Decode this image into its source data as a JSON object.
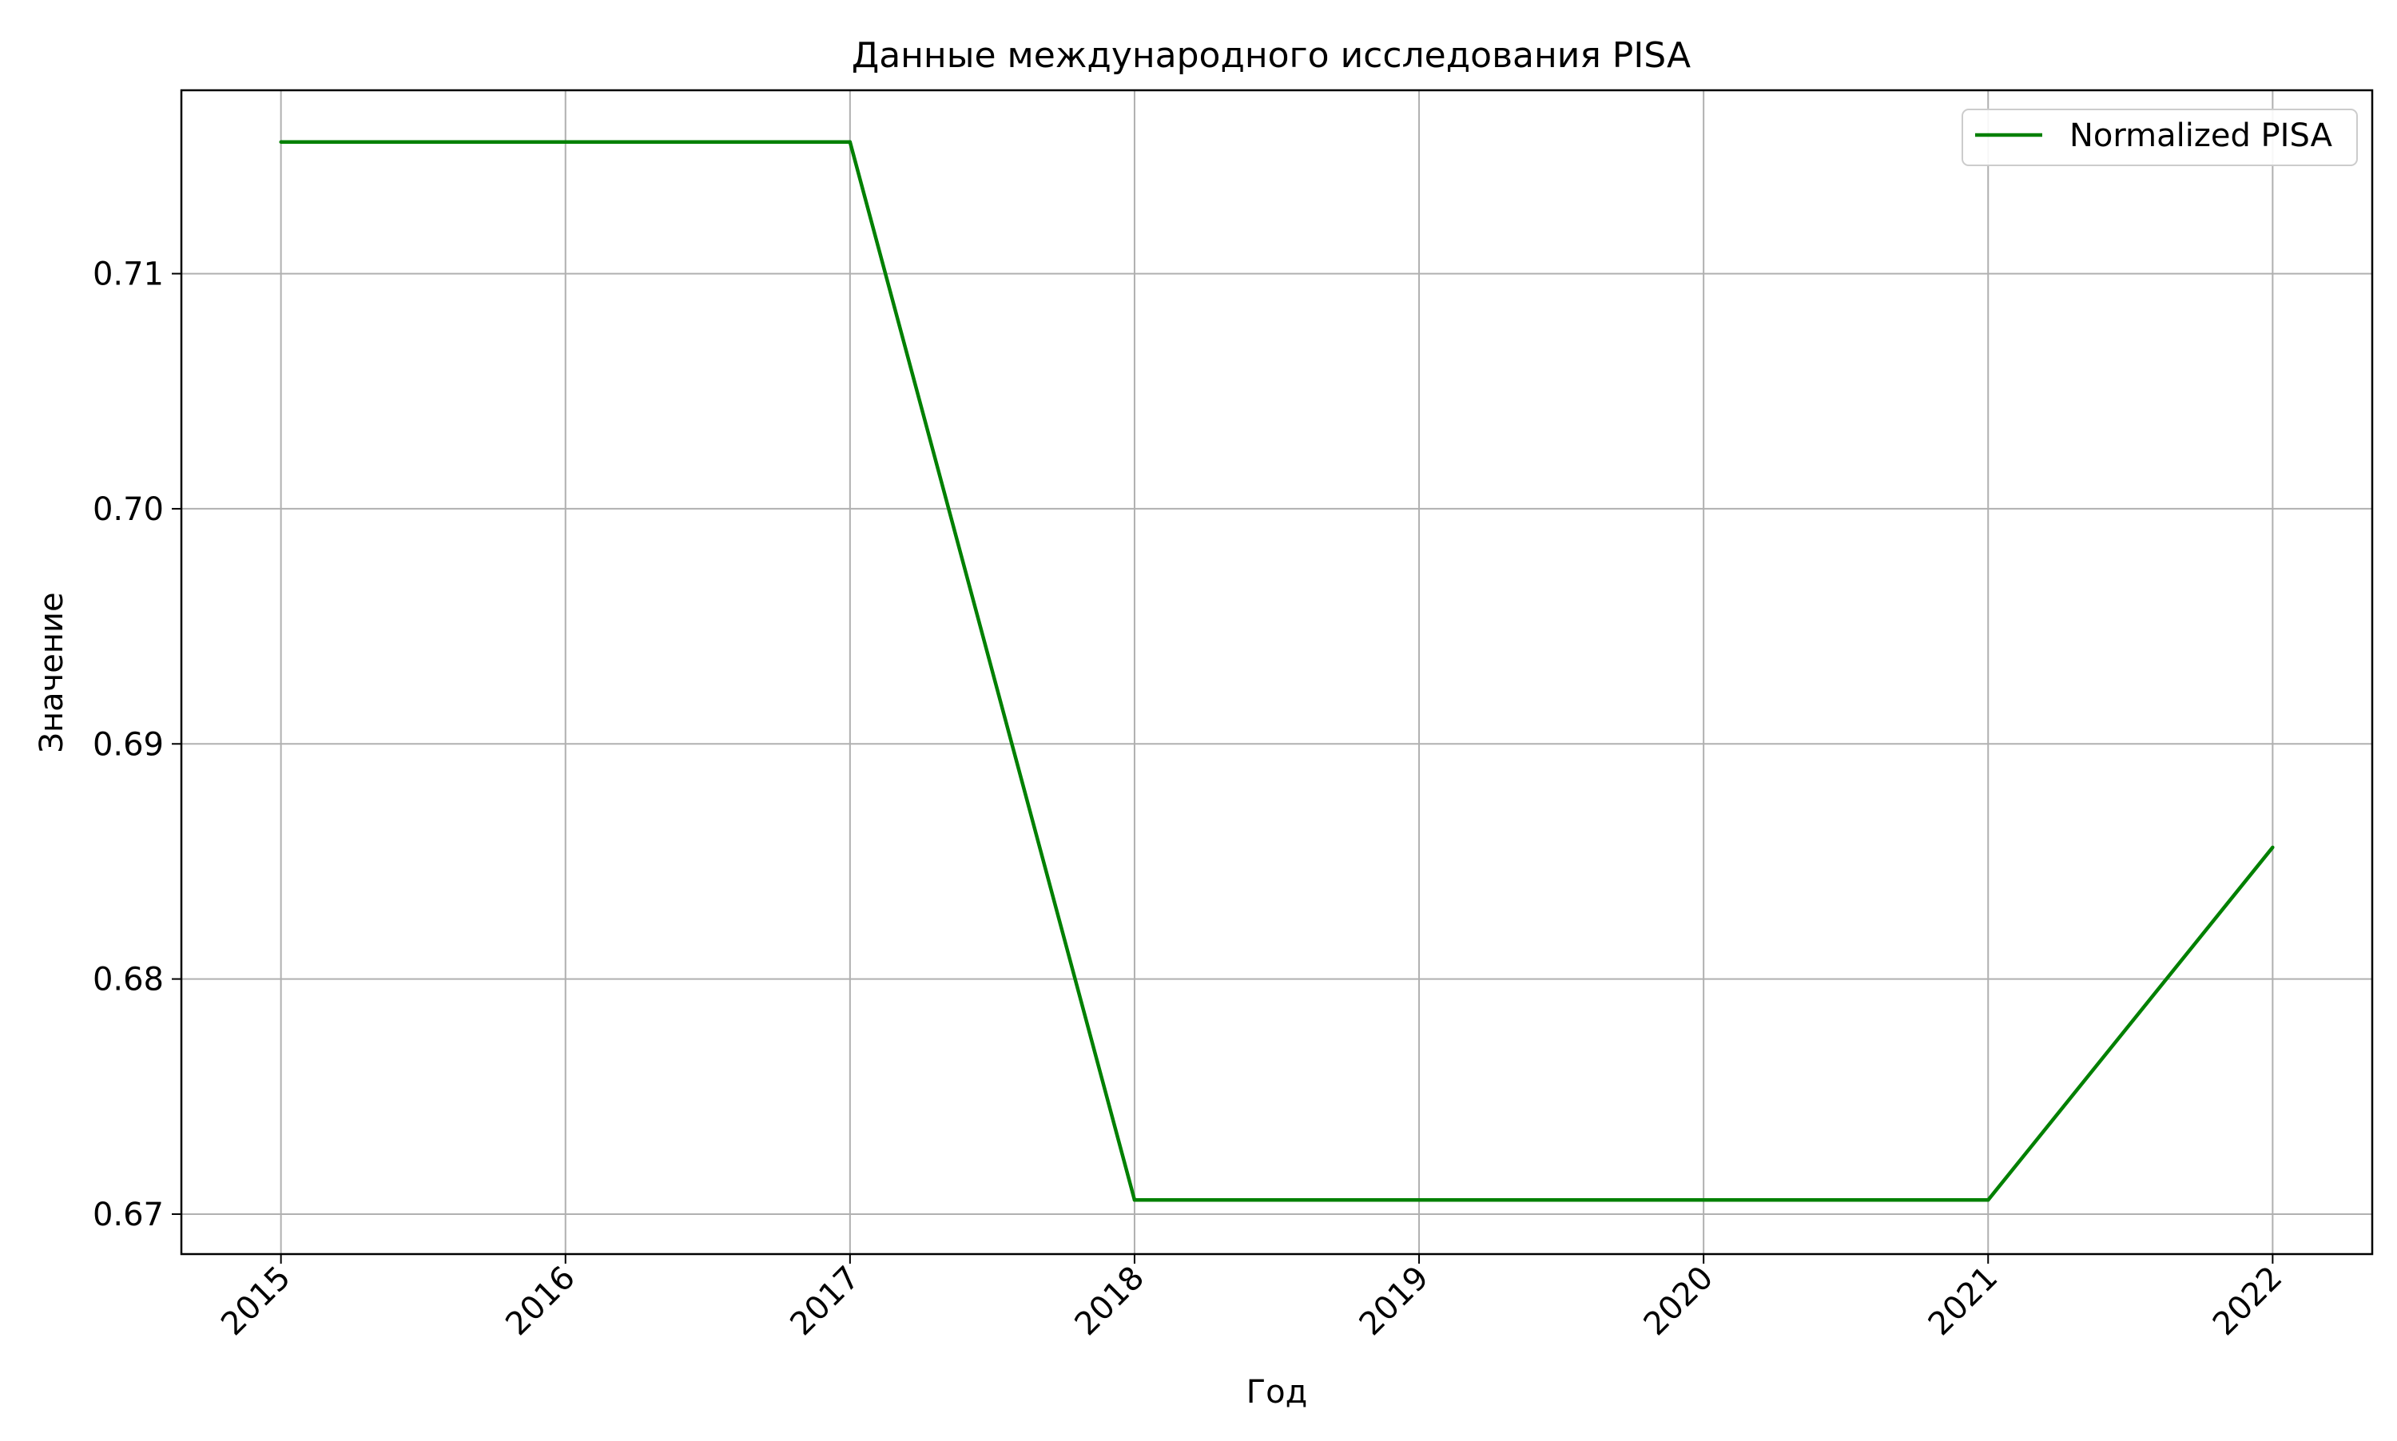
{
  "chart_data": {
    "type": "line",
    "title": "Данные международного исследования PISA",
    "xlabel": "Год",
    "ylabel": "Значение",
    "x": [
      2015,
      2016,
      2017,
      2018,
      2019,
      2020,
      2021,
      2022
    ],
    "x_tick_labels": [
      "2015",
      "2016",
      "2017",
      "2018",
      "2019",
      "2020",
      "2021",
      "2022"
    ],
    "xlim": [
      2014.65,
      2022.35
    ],
    "y_ticks": [
      0.67,
      0.68,
      0.69,
      0.7,
      0.71
    ],
    "y_tick_labels": [
      "0.67",
      "0.68",
      "0.69",
      "0.70",
      "0.71"
    ],
    "ylim": [
      0.6683,
      0.7178
    ],
    "grid": true,
    "legend_position": "top-right",
    "series": [
      {
        "name": "Normalized PISA",
        "color": "#008000",
        "values": [
          0.7156,
          0.7156,
          0.7156,
          0.6706,
          0.6706,
          0.6706,
          0.6706,
          0.6856
        ]
      }
    ]
  }
}
